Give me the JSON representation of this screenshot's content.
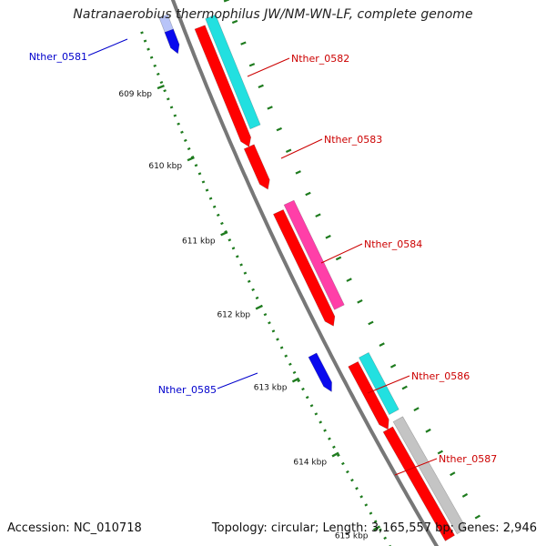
{
  "title": {
    "organism": "Natranaerobius thermophilus JW/NM-WN-LF, complete genome"
  },
  "footer": {
    "accession": "Accession: NC_010718",
    "summary": "Topology: circular; Length: 3,165,557 bp; Genes: 2,946"
  },
  "colors": {
    "backbone": "#777777",
    "tick": "#1e7b1e",
    "forward_label": "#cc0000",
    "reverse_label": "#0000cc",
    "red": "#ff0000",
    "cyan": "#22e0e0",
    "magenta": "#ff3fa8",
    "grey": "#c4c4c4",
    "blue": "#0a0aee",
    "lightblue": "#b8c4f8"
  },
  "ticks": [
    {
      "label": "609 kbp"
    },
    {
      "label": "610 kbp"
    },
    {
      "label": "611 kbp"
    },
    {
      "label": "612 kbp"
    },
    {
      "label": "613 kbp"
    },
    {
      "label": "614 kbp"
    },
    {
      "label": "615 kbp"
    }
  ],
  "genes": [
    {
      "name": "Nther_0581",
      "strand": "reverse"
    },
    {
      "name": "Nther_0582",
      "strand": "forward"
    },
    {
      "name": "Nther_0583",
      "strand": "forward"
    },
    {
      "name": "Nther_0584",
      "strand": "forward"
    },
    {
      "name": "Nther_0585",
      "strand": "reverse"
    },
    {
      "name": "Nther_0586",
      "strand": "forward"
    },
    {
      "name": "Nther_0587",
      "strand": "forward"
    }
  ]
}
